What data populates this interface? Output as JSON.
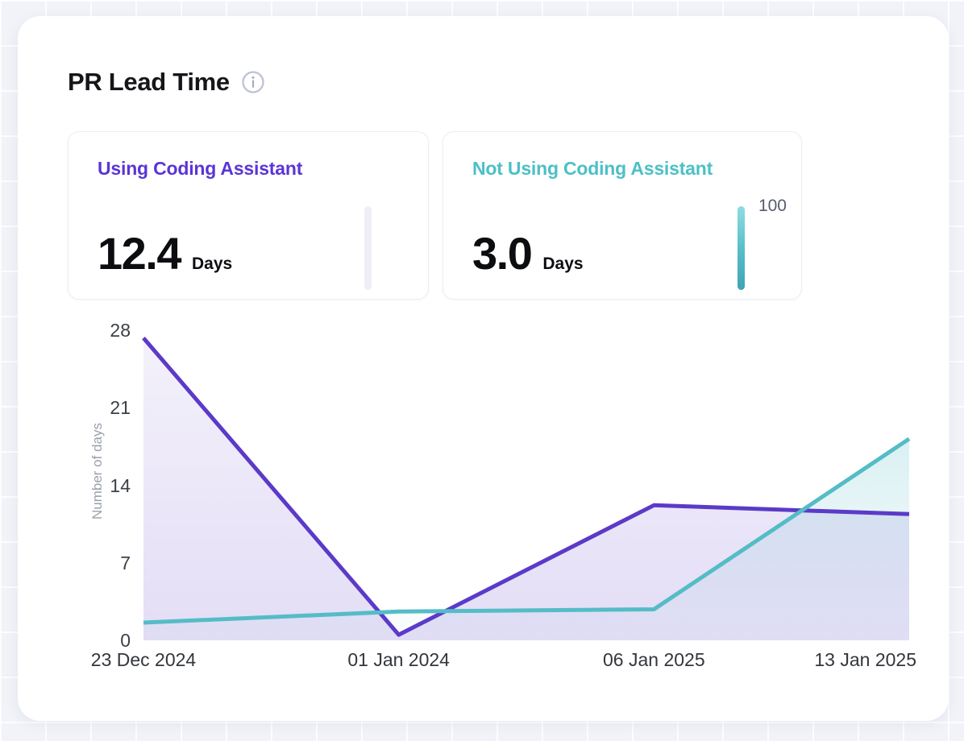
{
  "header": {
    "title": "PR Lead Time"
  },
  "stat_cards": [
    {
      "label": "Using Coding Assistant",
      "value": "12.4",
      "unit": "Days",
      "accent": "#5b35d5",
      "bar_label": ""
    },
    {
      "label": "Not Using Coding Assistant",
      "value": "3.0",
      "unit": "Days",
      "accent": "#4cc0c6",
      "bar_label": "100"
    }
  ],
  "chart_data": {
    "type": "line",
    "x": [
      "23 Dec 2024",
      "01 Jan 2024",
      "06 Jan 2025",
      "13 Jan 2025"
    ],
    "series": [
      {
        "name": "Using Coding Assistant",
        "color": "#5b3ac8",
        "values": [
          27.3,
          0.5,
          12.2,
          11.4
        ]
      },
      {
        "name": "Not Using Coding Assistant",
        "color": "#55bcc6",
        "values": [
          1.6,
          2.6,
          2.8,
          18.2
        ]
      }
    ],
    "title": "PR Lead Time",
    "xlabel": "",
    "ylabel": "Number of days",
    "ylim": [
      0,
      28
    ],
    "yticks": [
      0,
      7,
      14,
      21,
      28
    ],
    "grid": false,
    "legend": "none",
    "area": true
  }
}
